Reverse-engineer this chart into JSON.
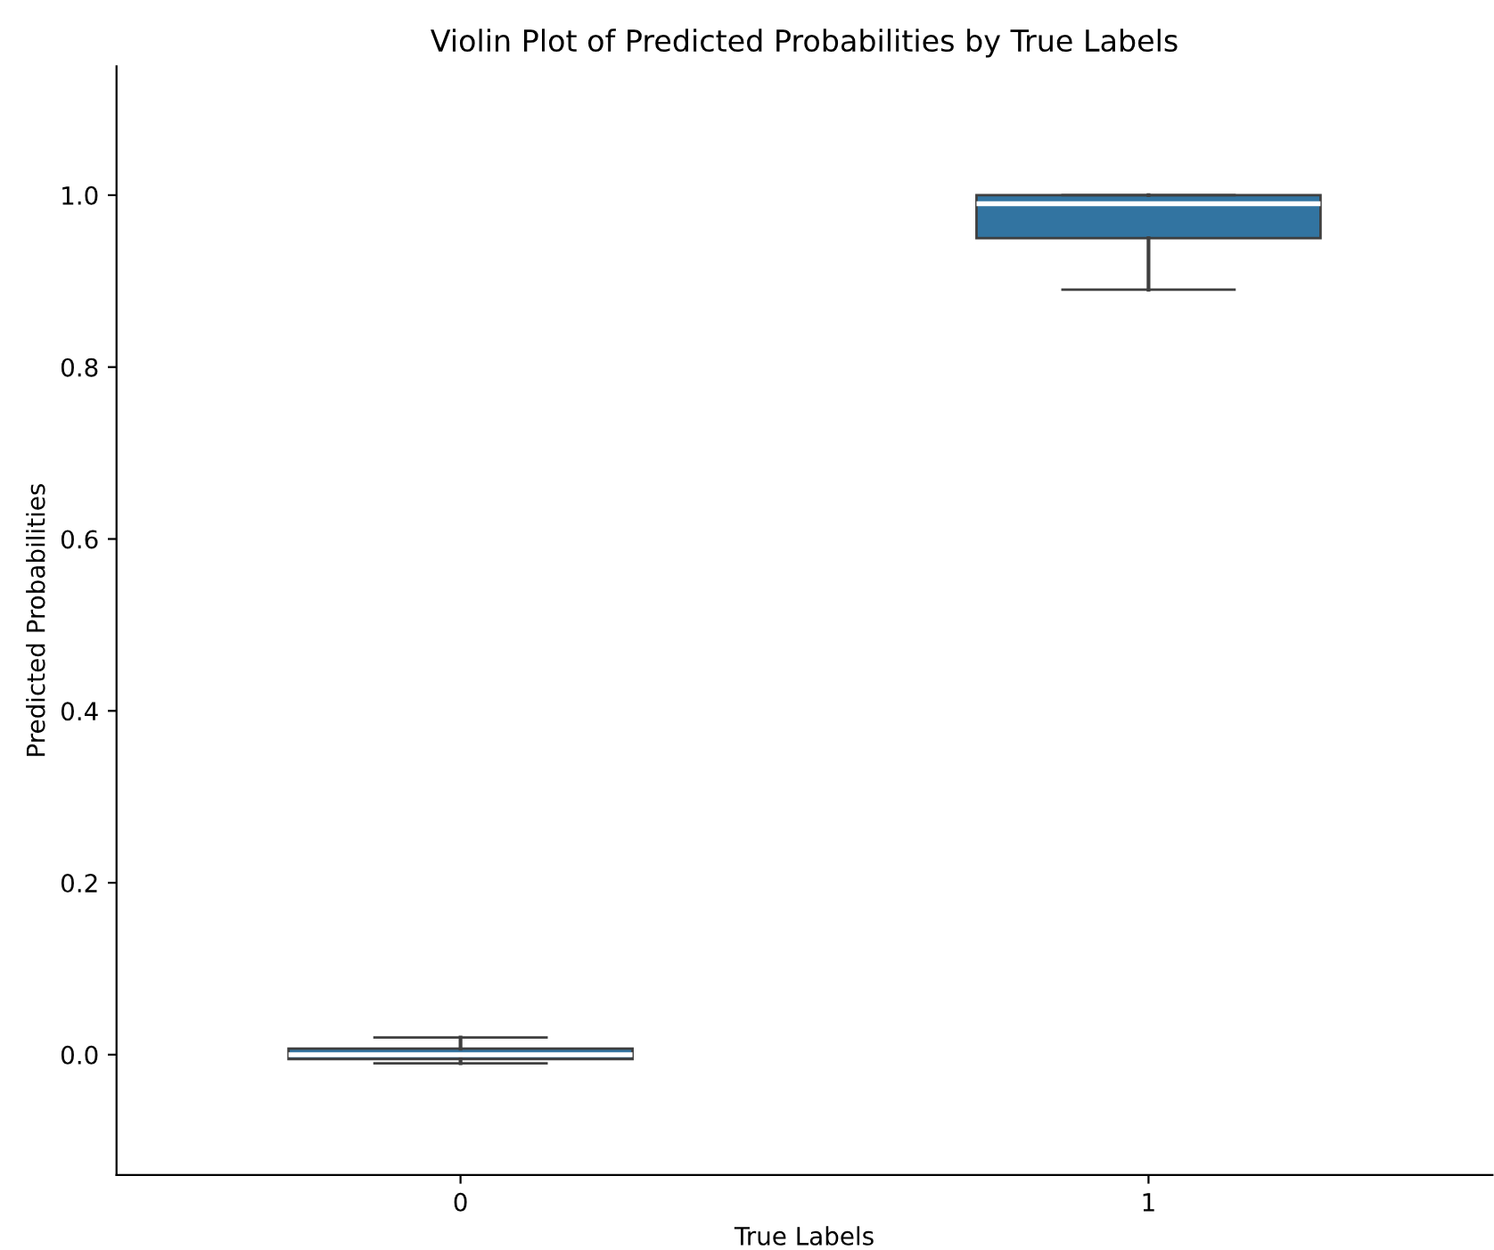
{
  "chart_data": {
    "type": "box",
    "title": "Violin Plot of Predicted Probabilities by True Labels",
    "xlabel": "True Labels",
    "ylabel": "Predicted Probabilities",
    "categories": [
      "0",
      "1"
    ],
    "color": "#3274a1",
    "boxes": [
      {
        "low": -0.01,
        "q1": -0.005,
        "median": 0.0,
        "q3": 0.007,
        "high": 0.02
      },
      {
        "low": 0.89,
        "q1": 0.95,
        "median": 0.99,
        "q3": 1.0,
        "high": 1.0
      }
    ],
    "ylim": [
      -0.14,
      1.15
    ],
    "yticks": [
      {
        "value": 0,
        "label": "0.0"
      },
      0.2,
      0.4,
      0.6,
      0.8,
      {
        "value": 1,
        "label": "1.0"
      }
    ],
    "grid": false
  }
}
